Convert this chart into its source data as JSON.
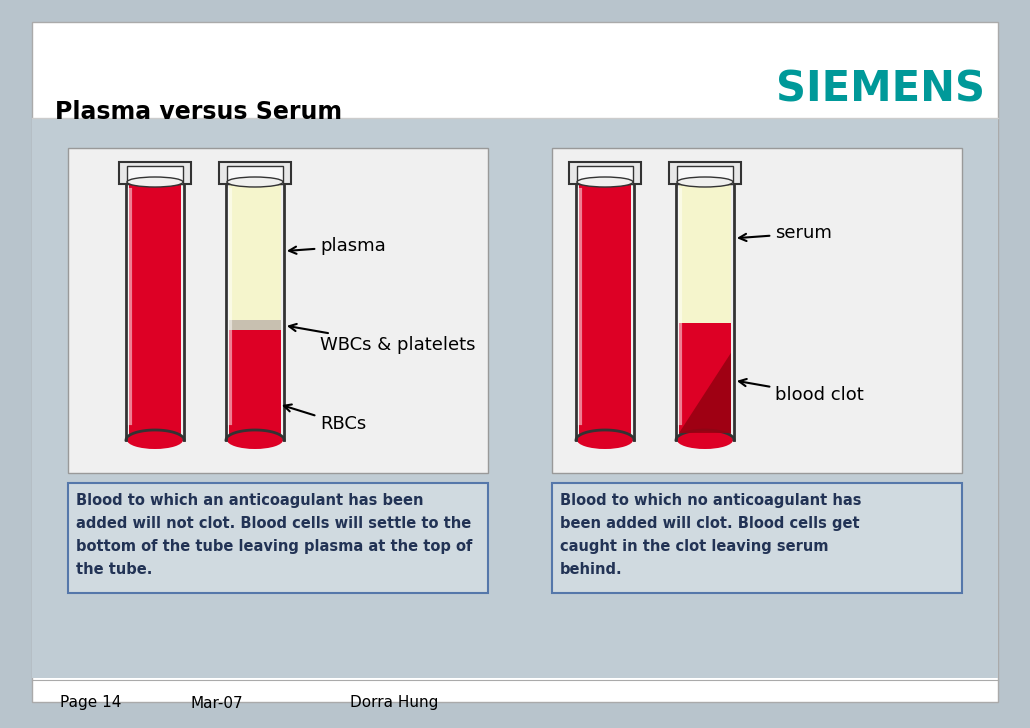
{
  "outer_bg": "#b8c4cc",
  "slide_bg": "#ffffff",
  "content_bg": "#c0ccd4",
  "title": "Plasma versus Serum",
  "title_color": "#000000",
  "title_fontsize": 17,
  "siemens_color": "#009999",
  "siemens_text": "SIEMENS",
  "siemens_fontsize": 30,
  "footer_texts": [
    "Page 14",
    "Mar-07",
    "Dorra Hung"
  ],
  "footer_fontsize": 11,
  "left_caption_line1": "Blood to which an anticoagulant has been",
  "left_caption_line2": "added will not clot. Blood cells will settle to the",
  "left_caption_line3": "bottom of the tube leaving plasma at the top of",
  "left_caption_line4": "the tube.",
  "right_caption_line1": "Blood to which no anticoagulant has",
  "right_caption_line2": "been added will clot. Blood cells get",
  "right_caption_line3": "caught in the clot leaving serum",
  "right_caption_line4": "behind.",
  "caption_fontsize": 10.5,
  "caption_bg": "#d0dae0",
  "caption_border": "#5577aa",
  "plasma_label": "plasma",
  "wbc_label": "WBCs & platelets",
  "rbc_label": "RBCs",
  "serum_label": "serum",
  "clot_label": "blood clot",
  "red_color": "#dd0025",
  "plasma_color": "#f5f5cc",
  "serum_color": "#f5f5cc",
  "clot_color": "#990011",
  "wbc_color": "#c8c0b0",
  "tube_outline": "#333333",
  "panel_bg": "#f0f0f0",
  "panel_border": "#999999"
}
